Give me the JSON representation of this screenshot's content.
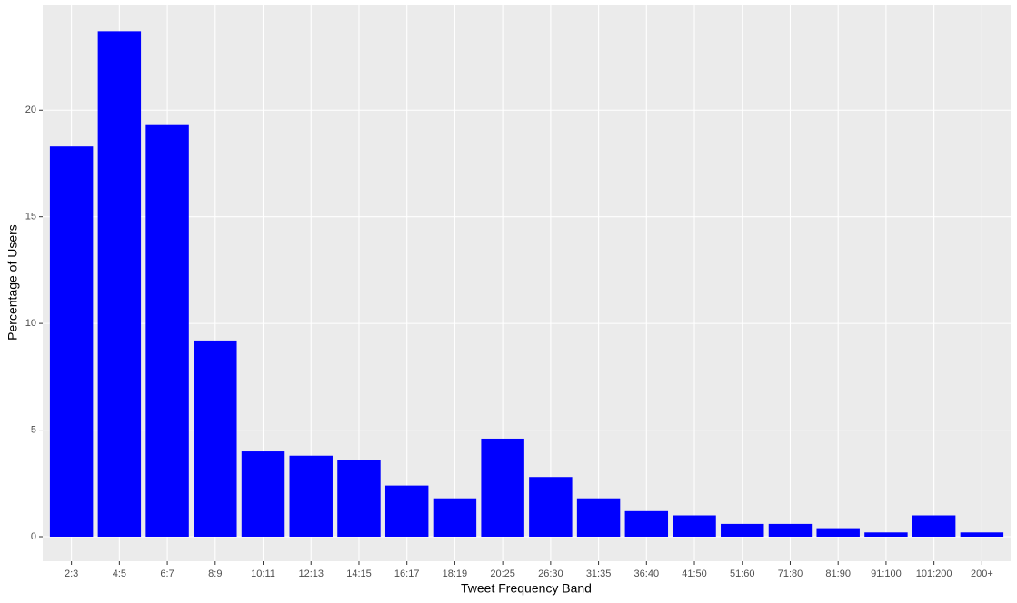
{
  "chart_data": {
    "type": "bar",
    "x_label": "Tweet Frequency Band",
    "y_label": "Percentage of Users",
    "categories": [
      "2:3",
      "4:5",
      "6:7",
      "8:9",
      "10:11",
      "12:13",
      "14:15",
      "16:17",
      "18:19",
      "20:25",
      "26:30",
      "31:35",
      "36:40",
      "41:50",
      "51:60",
      "71:80",
      "81:90",
      "91:100",
      "101:200",
      "200+"
    ],
    "values": [
      18.3,
      23.7,
      19.3,
      9.2,
      4.0,
      3.8,
      3.6,
      2.4,
      1.8,
      4.6,
      2.8,
      1.8,
      1.2,
      1.0,
      0.6,
      0.6,
      0.4,
      0.2,
      1.0,
      0.2
    ],
    "color": "#0000ff",
    "ylim": [
      -1.15,
      24.95
    ],
    "yticks": [
      0,
      5,
      10,
      15,
      20
    ],
    "grid": true
  }
}
